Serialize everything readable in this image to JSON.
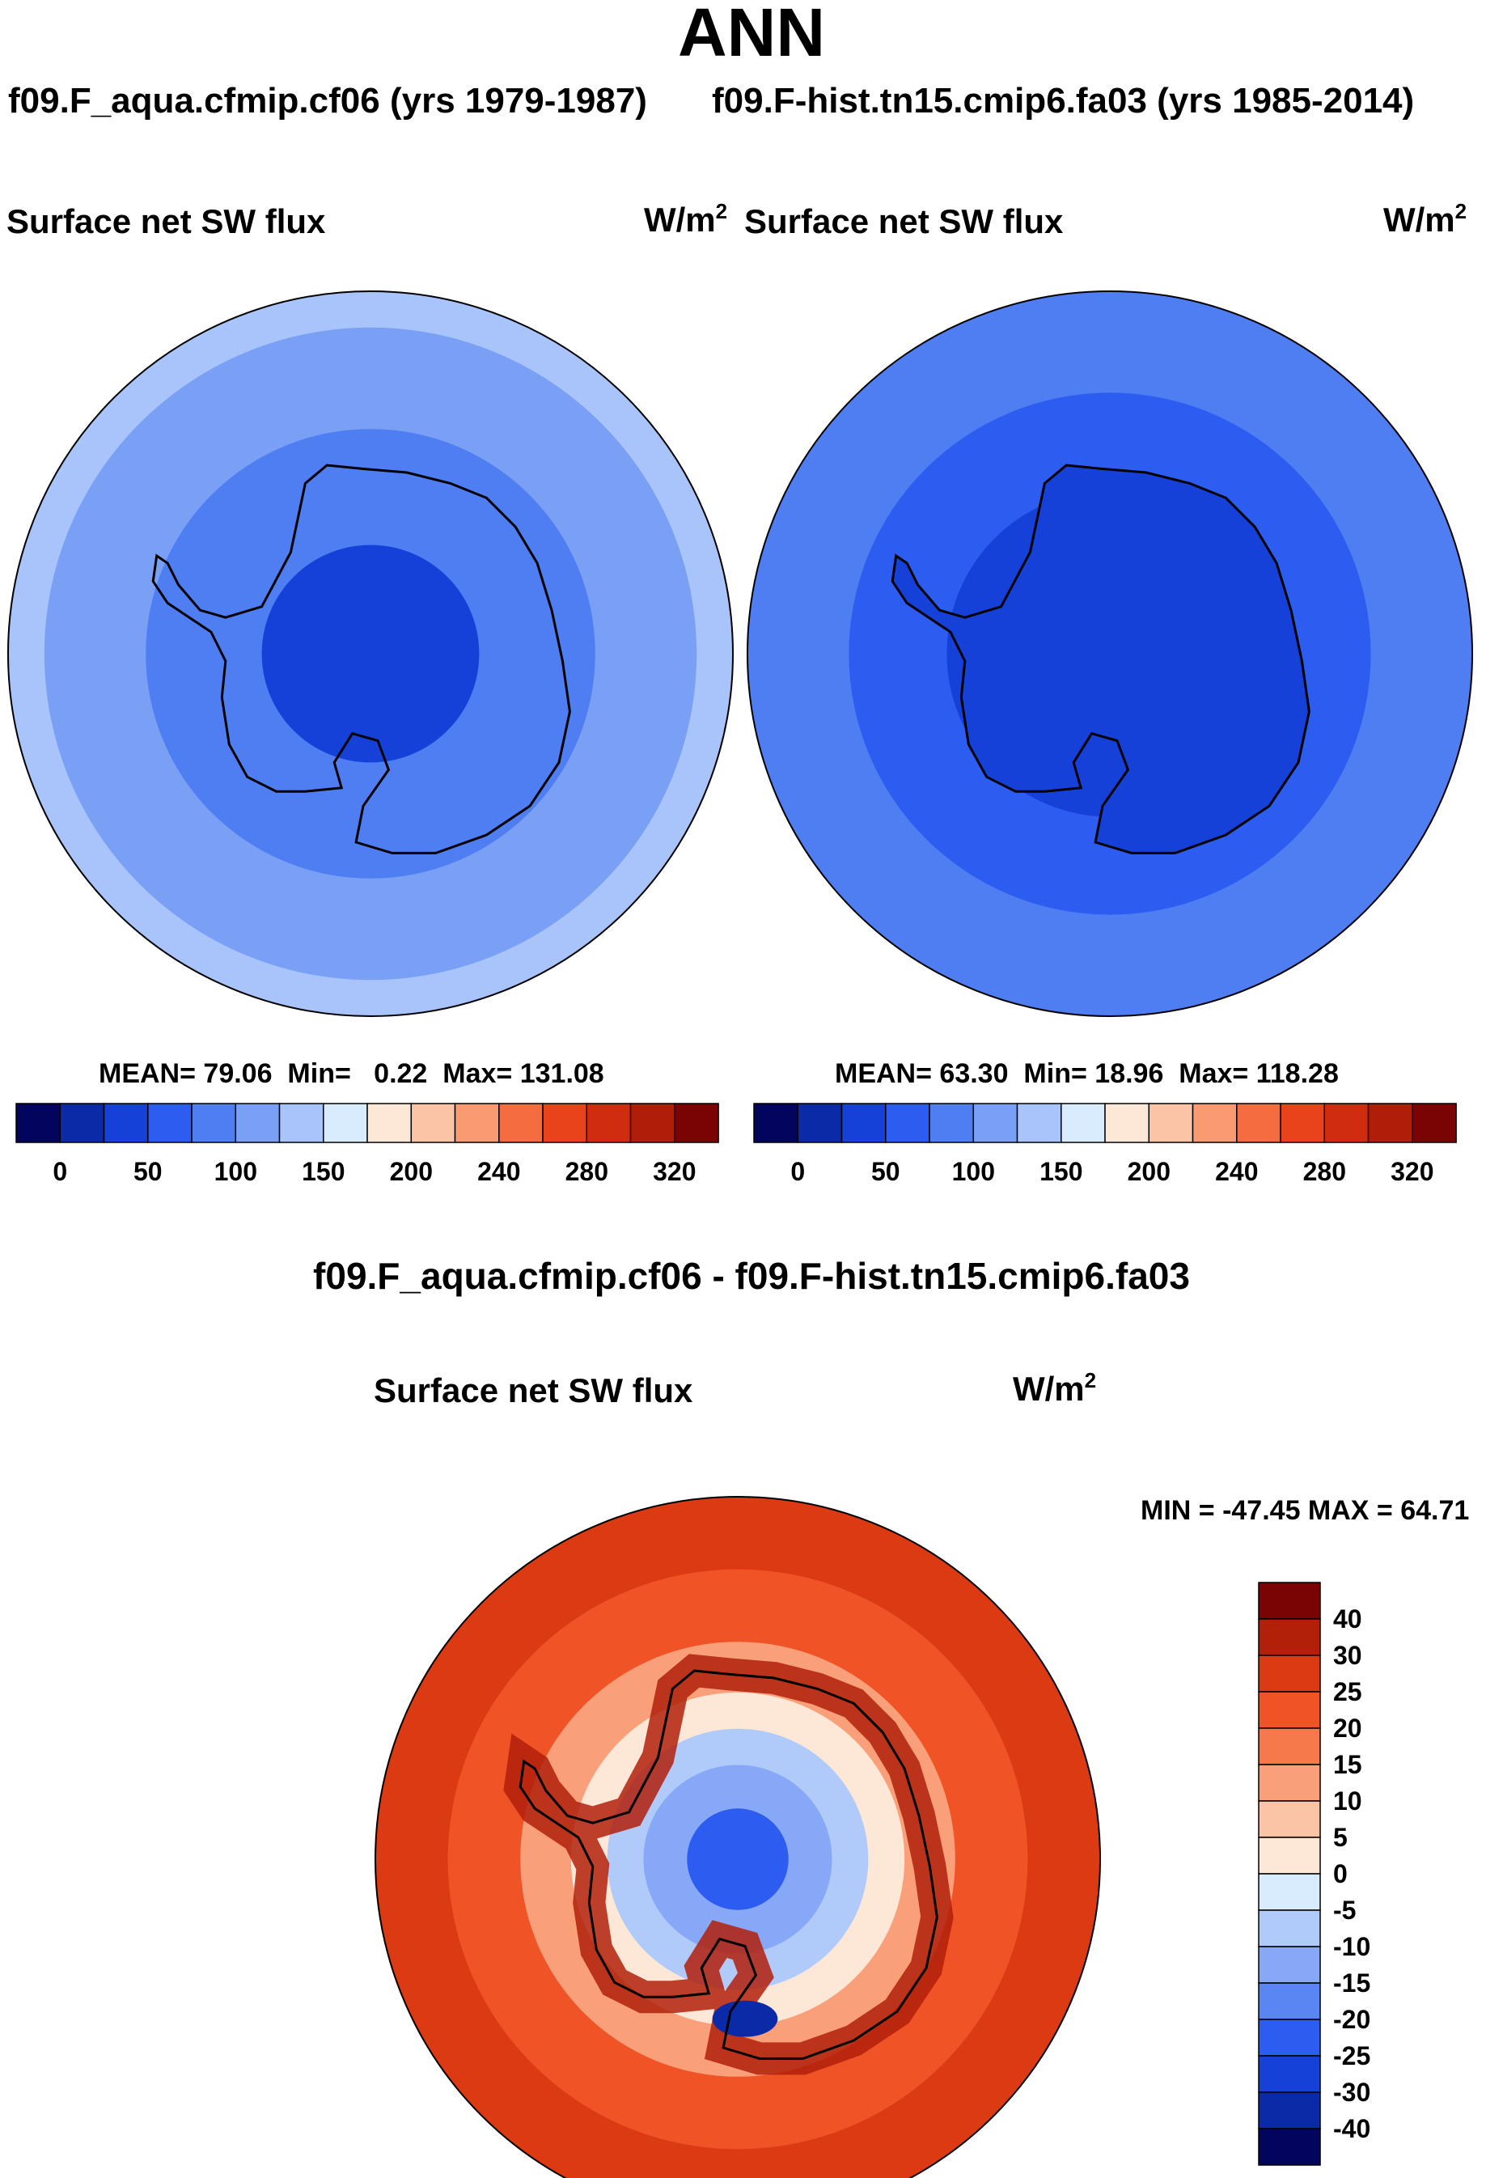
{
  "page": {
    "title": "ANN",
    "diff_title": "f09.F_aqua.cfmip.cf06 - f09.F-hist.tn15.cmip6.fa03"
  },
  "colors": {
    "sequential": [
      "#03045e",
      "#0a2aa8",
      "#1641d8",
      "#2d5cf0",
      "#4e7ef2",
      "#7aa0f6",
      "#a8c4fa",
      "#d9ecfd",
      "#fde8d8",
      "#fcc4a6",
      "#f99a72",
      "#f46c40",
      "#e8441c",
      "#d02d10",
      "#b01e0a",
      "#7a0404"
    ],
    "diverging": [
      "#03045e",
      "#0a2aa8",
      "#1641d8",
      "#2d5cf0",
      "#5a86f4",
      "#86a8f7",
      "#b0cbfa",
      "#d9ecfd",
      "#fde8d8",
      "#fcc4a6",
      "#f9a07a",
      "#f6794c",
      "#ef5326",
      "#dc3a12",
      "#b2200a",
      "#7a0404"
    ],
    "coast": "#000000"
  },
  "chart_data": [
    {
      "type": "heatmap",
      "projection": "south-polar-stereographic",
      "case_title": "f09.F_aqua.cfmip.cf06 (yrs 1979-1987)",
      "variable": "Surface net SW flux",
      "units": "W/m",
      "units_sup": "2",
      "stats": {
        "mean_label": "MEAN=",
        "mean": "79.06",
        "min_label": "Min=",
        "min": "0.22",
        "max_label": "Max=",
        "max": "131.08"
      },
      "levels": [
        "0",
        "50",
        "100",
        "150",
        "200",
        "240",
        "280",
        "320"
      ],
      "field_rings": [
        {
          "radius_frac": 1.0,
          "value": 125
        },
        {
          "radius_frac": 0.9,
          "value": 115
        },
        {
          "radius_frac": 0.78,
          "value": 100
        },
        {
          "radius_frac": 0.62,
          "value": 80
        },
        {
          "radius_frac": 0.3,
          "value": 40
        }
      ]
    },
    {
      "type": "heatmap",
      "projection": "south-polar-stereographic",
      "case_title": "f09.F-hist.tn15.cmip6.fa03 (yrs 1985-2014)",
      "variable": "Surface net SW flux",
      "units": "W/m",
      "units_sup": "2",
      "stats": {
        "mean_label": "MEAN=",
        "mean": "63.30",
        "min_label": "Min=",
        "min": "18.96",
        "max_label": "Max=",
        "max": "118.28"
      },
      "levels": [
        "0",
        "50",
        "100",
        "150",
        "200",
        "240",
        "280",
        "320"
      ],
      "field_rings": [
        {
          "radius_frac": 1.0,
          "value": 95
        },
        {
          "radius_frac": 0.9,
          "value": 80
        },
        {
          "radius_frac": 0.72,
          "value": 68
        },
        {
          "radius_frac": 0.45,
          "value": 40
        }
      ]
    },
    {
      "type": "heatmap",
      "projection": "south-polar-stereographic",
      "variable": "Surface net SW flux",
      "units": "W/m",
      "units_sup": "2",
      "minmax_text": "MIN = -47.45 MAX =  64.71",
      "levels": [
        "40",
        "30",
        "25",
        "20",
        "15",
        "10",
        "5",
        "0",
        "-5",
        "-10",
        "-15",
        "-20",
        "-25",
        "-30",
        "-40"
      ],
      "field_rings": [
        {
          "radius_frac": 1.0,
          "value": 28
        },
        {
          "radius_frac": 0.8,
          "value": 22
        },
        {
          "radius_frac": 0.6,
          "value": 12
        },
        {
          "radius_frac": 0.46,
          "value": 3
        },
        {
          "radius_frac": 0.36,
          "value": -7
        },
        {
          "radius_frac": 0.26,
          "value": -14
        },
        {
          "radius_frac": 0.14,
          "value": -22
        }
      ]
    }
  ]
}
